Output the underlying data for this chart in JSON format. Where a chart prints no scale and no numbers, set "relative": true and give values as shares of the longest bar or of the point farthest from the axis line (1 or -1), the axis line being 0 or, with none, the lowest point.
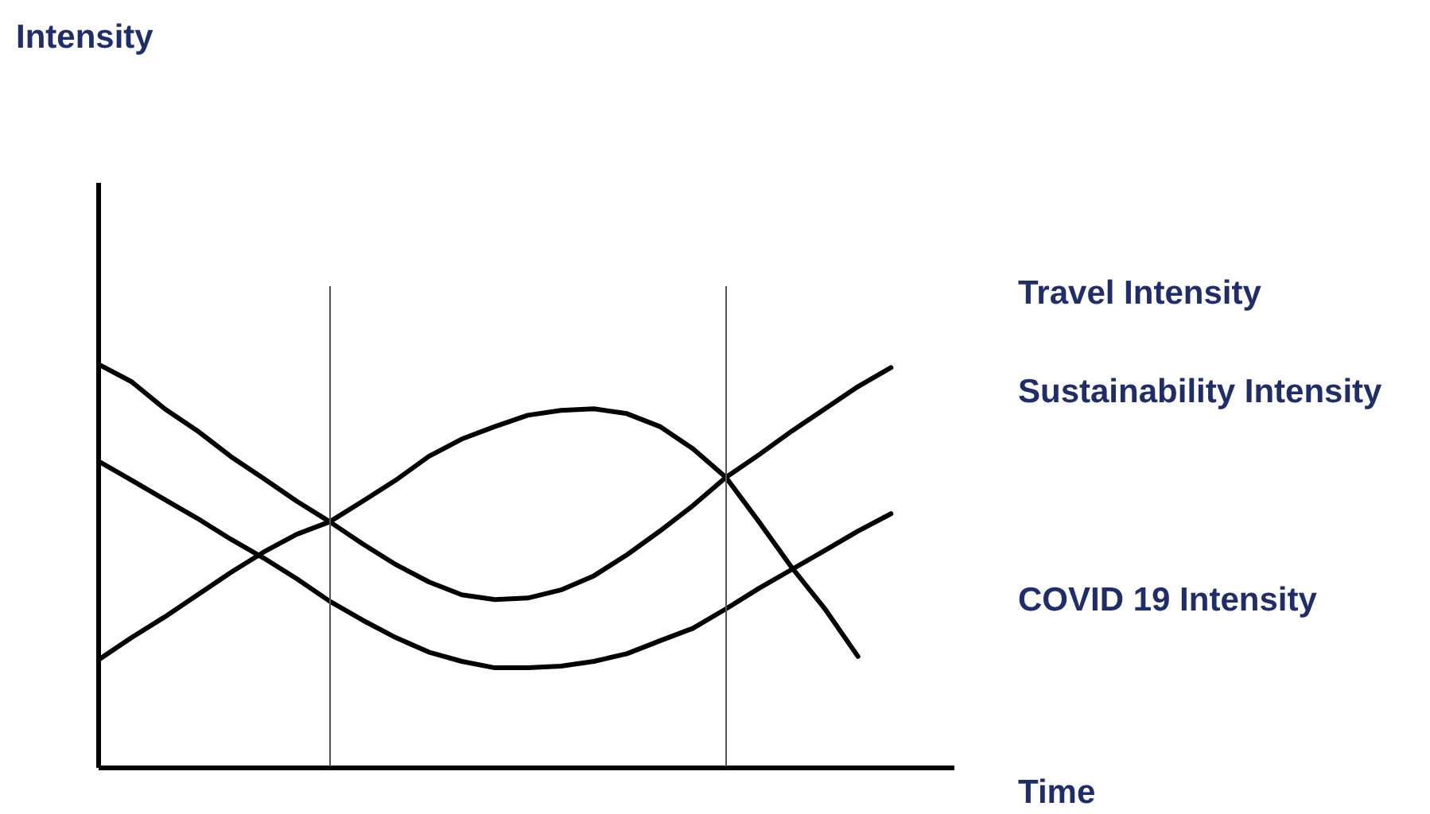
{
  "chart_data": {
    "type": "line",
    "relative": true,
    "xlabel": "Time",
    "annotations": [
      "Intensity"
    ],
    "grid": false,
    "legend": false,
    "marker": "none",
    "line_style": "solid",
    "categories": [
      null,
      null,
      null,
      null,
      null,
      null,
      null,
      null,
      null,
      null,
      null,
      null,
      null,
      null,
      null,
      null,
      null,
      null,
      null,
      null,
      null,
      null,
      null,
      null,
      null
    ],
    "series": [
      {
        "name": "Travel Intensity",
        "color": "#000000",
        "values": [
          1,
          0.957,
          0.89,
          0.835,
          0.772,
          0.717,
          0.661,
          0.61,
          0.555,
          0.504,
          0.461,
          0.429,
          0.417,
          0.421,
          0.441,
          0.476,
          0.528,
          0.587,
          0.65,
          0.72,
          0.776,
          0.835,
          0.89,
          0.945,
          0.992
        ]
      },
      {
        "name": "Sustainability Intensity",
        "color": "#000000",
        "values": [
          0.76,
          0.713,
          0.665,
          0.618,
          0.567,
          0.52,
          0.469,
          0.413,
          0.366,
          0.323,
          0.287,
          0.264,
          0.248,
          0.248,
          0.252,
          0.264,
          0.283,
          0.315,
          0.346,
          0.394,
          0.445,
          0.492,
          0.539,
          0.587,
          0.63
        ]
      },
      {
        "name": "COVID 19 Intensity",
        "color": "#000000",
        "values": [
          0.268,
          0.323,
          0.374,
          0.429,
          0.484,
          0.535,
          0.579,
          0.61,
          0.661,
          0.713,
          0.772,
          0.815,
          0.846,
          0.874,
          0.886,
          0.89,
          0.878,
          0.846,
          0.791,
          0.72,
          0.61,
          0.496,
          0.394,
          0.276,
          null
        ]
      }
    ]
  }
}
